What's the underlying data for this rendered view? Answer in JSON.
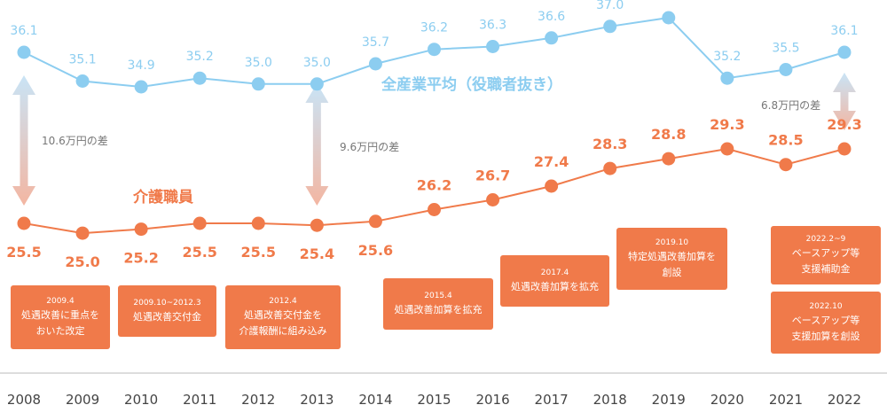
{
  "chart_data": {
    "type": "line",
    "categories": [
      "2008",
      "2009",
      "2010",
      "2011",
      "2012",
      "2013",
      "2014",
      "2015",
      "2016",
      "2017",
      "2018",
      "2019",
      "2020",
      "2021",
      "2022"
    ],
    "series": [
      {
        "name": "全産業平均（役職者抜き）",
        "color": "#8ccdf0",
        "values": [
          36.1,
          35.1,
          34.9,
          35.2,
          35.0,
          35.0,
          35.7,
          36.2,
          36.3,
          36.6,
          37.0,
          37.3,
          35.2,
          35.5,
          36.1
        ]
      },
      {
        "name": "介護職員",
        "color": "#f07a4a",
        "values": [
          25.5,
          25.0,
          25.2,
          25.5,
          25.5,
          25.4,
          25.6,
          26.2,
          26.7,
          27.4,
          28.3,
          28.8,
          29.3,
          28.5,
          29.3
        ]
      }
    ],
    "gaps": [
      {
        "year": "2008",
        "label": "10.6万円の差"
      },
      {
        "year": "2013",
        "label": "9.6万円の差"
      },
      {
        "year": "2022",
        "label": "6.8万円の差"
      }
    ],
    "annotations": [
      {
        "date": "2009.4",
        "text": "処遇改善に重点を\nおいた改定"
      },
      {
        "date": "2009.10~2012.3",
        "text": "処遇改善交付金"
      },
      {
        "date": "2012.4",
        "text": "処遇改善交付金を\n介護報酬に組み込み"
      },
      {
        "date": "2015.4",
        "text": "処遇改善加算を拡充"
      },
      {
        "date": "2017.4",
        "text": "処遇改善加算を拡充"
      },
      {
        "date": "2019.10",
        "text": "特定処遇改善加算を\n創設"
      },
      {
        "date": "2022.2~9",
        "text": "ベースアップ等\n支援補助金"
      },
      {
        "date": "2022.10",
        "text": "ベースアップ等\n支援加算を創設"
      }
    ],
    "colors": {
      "all_industry": "#8ccdf0",
      "care": "#f07a4a",
      "axis": "#bbbbbb"
    }
  }
}
